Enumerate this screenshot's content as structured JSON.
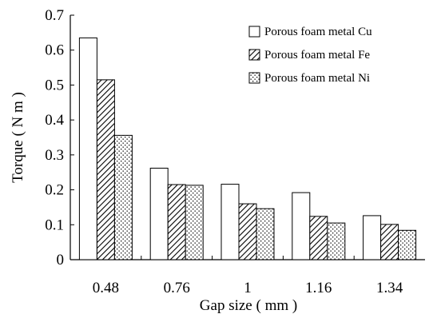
{
  "chart_data": {
    "type": "bar",
    "title": "",
    "xlabel": "Gap size ( mm )",
    "ylabel": "Torque ( N m )",
    "categories": [
      "0.48",
      "0.76",
      "1",
      "1.16",
      "1.34"
    ],
    "ylim": [
      0,
      0.7
    ],
    "yticks": [
      "0",
      "0.1",
      "0.2",
      "0.3",
      "0.4",
      "0.5",
      "0.6",
      "0.7"
    ],
    "grid": false,
    "legend_position": "top-right",
    "series": [
      {
        "name": "Porous foam metal Cu",
        "pattern": "solid-white",
        "values": [
          0.635,
          0.262,
          0.216,
          0.192,
          0.126
        ]
      },
      {
        "name": "Porous foam metal Fe",
        "pattern": "diagonal-hatch",
        "values": [
          0.515,
          0.215,
          0.16,
          0.124,
          0.101
        ]
      },
      {
        "name": "Porous foam metal Ni",
        "pattern": "dotted",
        "values": [
          0.356,
          0.213,
          0.146,
          0.105,
          0.084
        ]
      }
    ]
  }
}
